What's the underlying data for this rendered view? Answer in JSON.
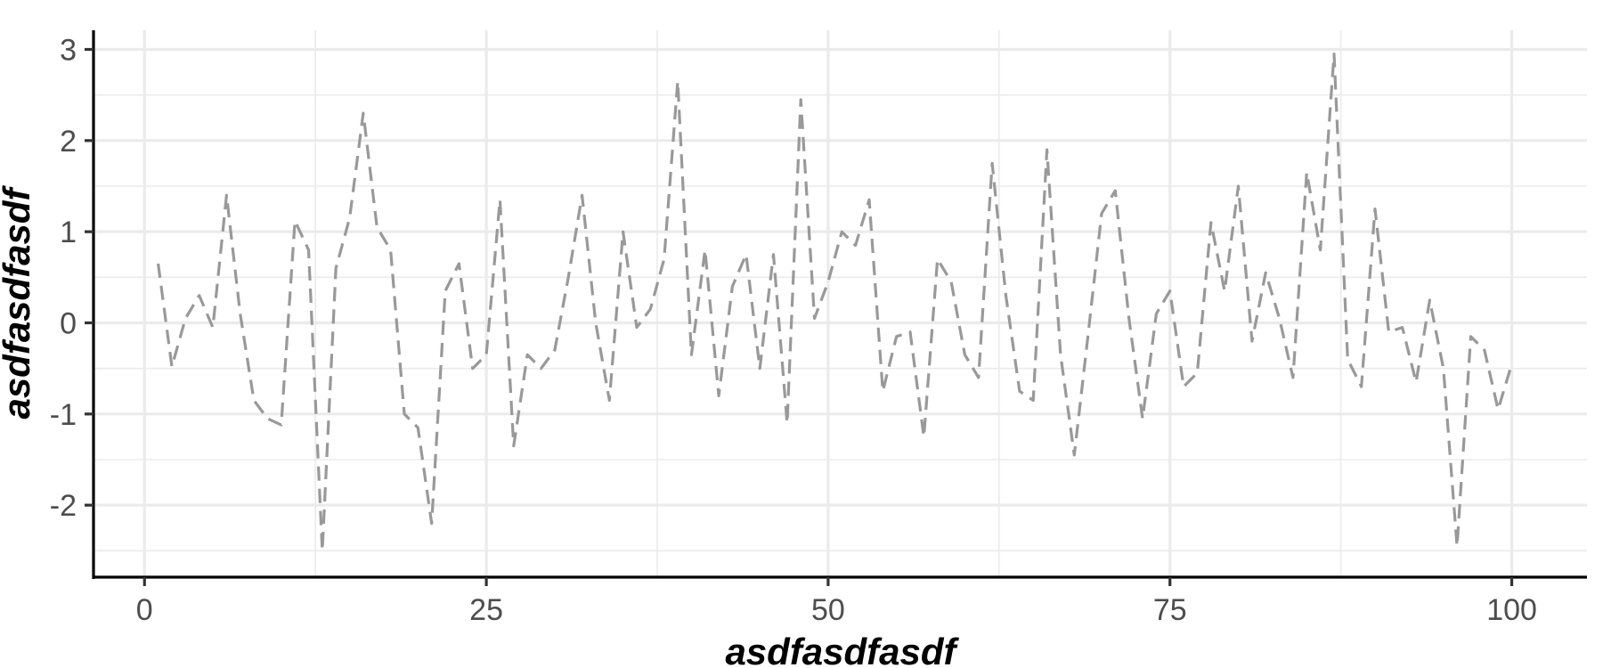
{
  "chart_data": {
    "type": "line",
    "xlabel": "asdfasdfasdf",
    "ylabel": "asdfasdfasdf",
    "xlim": [
      -3.6,
      105.5
    ],
    "ylim": [
      -2.79,
      3.21
    ],
    "x_ticks": [
      0,
      25,
      50,
      75,
      100
    ],
    "x_minor_ticks": [
      12.5,
      37.5,
      62.5,
      87.5
    ],
    "y_ticks": [
      -2,
      -1,
      0,
      1,
      2,
      3
    ],
    "y_minor_ticks": [
      -2.5,
      -1.5,
      -0.5,
      0.5,
      1.5,
      2.5
    ],
    "y_tick_labels": [
      "-2",
      "-1",
      "0",
      "1",
      "2",
      "3"
    ],
    "x_tick_labels": [
      "0",
      "25",
      "50",
      "75",
      "100"
    ],
    "grid": true,
    "legend": "none",
    "line_color": "#999999",
    "line_style": "dashed",
    "series": [
      {
        "x": [
          1,
          2,
          3,
          4,
          5,
          6,
          7,
          8,
          9,
          10,
          11,
          12,
          13,
          14,
          15,
          16,
          17,
          18,
          19,
          20,
          21,
          22,
          23,
          24,
          25,
          26,
          27,
          28,
          29,
          30,
          31,
          32,
          33,
          34,
          35,
          36,
          37,
          38,
          39,
          40,
          41,
          42,
          43,
          44,
          45,
          46,
          47,
          48,
          49,
          50,
          51,
          52,
          53,
          54,
          55,
          56,
          57,
          58,
          59,
          60,
          61,
          62,
          63,
          64,
          65,
          66,
          67,
          68,
          69,
          70,
          71,
          72,
          73,
          74,
          75,
          76,
          77,
          78,
          79,
          80,
          81,
          82,
          83,
          84,
          85,
          86,
          87,
          88,
          89,
          90,
          91,
          92,
          93,
          94,
          95,
          96,
          97,
          98,
          99,
          100
        ],
        "y": [
          0.65,
          -0.48,
          0.05,
          0.3,
          -0.05,
          1.4,
          0.1,
          -0.85,
          -1.05,
          -1.12,
          1.12,
          0.8,
          -2.5,
          0.6,
          1.15,
          2.3,
          1.05,
          0.8,
          -1.0,
          -1.15,
          -2.2,
          0.35,
          0.65,
          -0.5,
          -0.35,
          1.35,
          -1.35,
          -0.35,
          -0.5,
          -0.3,
          0.5,
          1.4,
          0.0,
          -0.85,
          1.0,
          -0.05,
          0.15,
          0.7,
          2.65,
          -0.35,
          0.8,
          -0.8,
          0.4,
          0.75,
          -0.5,
          0.75,
          -1.1,
          2.45,
          0.05,
          0.45,
          1.0,
          0.85,
          1.35,
          -0.75,
          -0.15,
          -0.1,
          -1.25,
          0.7,
          0.45,
          -0.35,
          -0.6,
          1.75,
          0.3,
          -0.75,
          -0.85,
          1.9,
          -0.35,
          -1.45,
          -0.15,
          1.2,
          1.45,
          0.05,
          -1.05,
          0.1,
          0.35,
          -0.7,
          -0.55,
          1.1,
          0.35,
          1.5,
          -0.2,
          0.55,
          0.05,
          -0.6,
          1.65,
          0.8,
          2.95,
          -0.4,
          -0.7,
          1.25,
          -0.1,
          -0.05,
          -0.65,
          0.25,
          -0.5,
          -2.45,
          -0.15,
          -0.3,
          -0.95,
          -0.45
        ]
      }
    ]
  }
}
